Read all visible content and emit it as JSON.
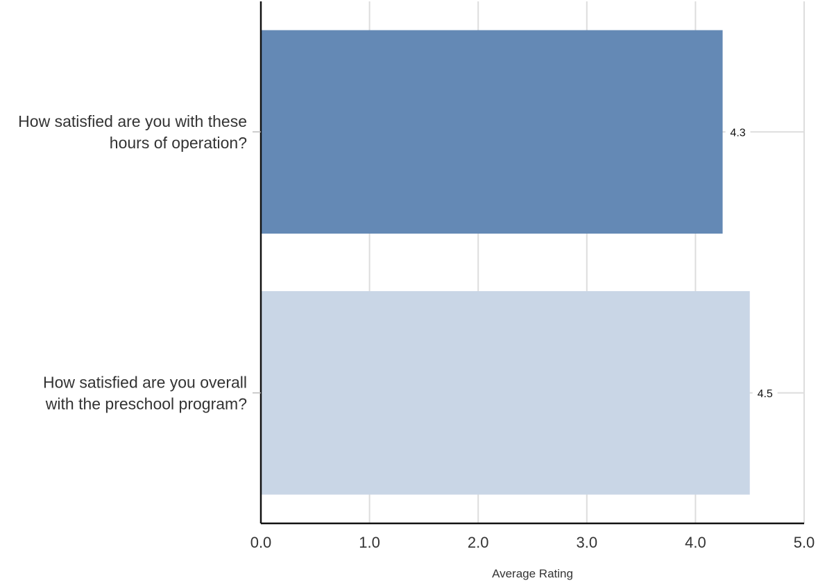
{
  "chart_data": {
    "type": "bar",
    "orientation": "horizontal",
    "categories": [
      [
        "How satisfied are you with these",
        "hours of operation?"
      ],
      [
        "How satisfied are you overall",
        "with the preschool program?"
      ]
    ],
    "values": [
      4.25,
      4.5
    ],
    "value_labels": [
      "4.3",
      "4.5"
    ],
    "bar_colors": [
      "#6489b5",
      "#c9d6e6"
    ],
    "xlabel": "Average Rating",
    "xlim": [
      0,
      5
    ],
    "x_ticks": [
      0,
      1,
      2,
      3,
      4,
      5
    ],
    "x_tick_labels": [
      "0.0",
      "1.0",
      "2.0",
      "3.0",
      "4.0",
      "5.0"
    ],
    "grid": true,
    "grid_color": "#dddddd",
    "axis_color": "#111111"
  }
}
